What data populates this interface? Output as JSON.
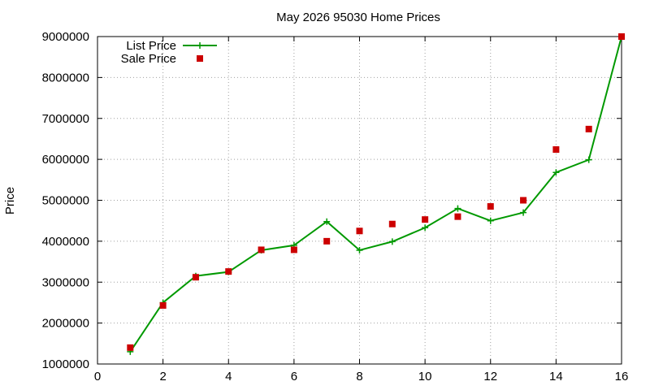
{
  "chart_data": {
    "type": "line",
    "title": "May 2026 95030 Home Prices",
    "xlabel": "",
    "ylabel": "Price",
    "xlim": [
      0,
      16
    ],
    "ylim": [
      1000000,
      9000000
    ],
    "x_ticks": [
      0,
      2,
      4,
      6,
      8,
      10,
      12,
      14,
      16
    ],
    "x_tick_labels": [
      "0",
      "2",
      "4",
      "6",
      "8",
      "10",
      "12",
      "14",
      "16"
    ],
    "y_ticks": [
      1000000,
      2000000,
      3000000,
      4000000,
      5000000,
      6000000,
      7000000,
      8000000,
      9000000
    ],
    "y_tick_labels": [
      "1000000",
      "2000000",
      "3000000",
      "4000000",
      "5000000",
      "6000000",
      "7000000",
      "8000000",
      "9000000"
    ],
    "grid": true,
    "legend_position": "top-left",
    "series": [
      {
        "name": "List Price",
        "style": "line+plus",
        "color": "#009900",
        "x": [
          1,
          2,
          3,
          4,
          5,
          6,
          7,
          8,
          9,
          10,
          11,
          12,
          13,
          14,
          15,
          16
        ],
        "values": [
          1300000,
          2500000,
          3150000,
          3250000,
          3780000,
          3900000,
          4480000,
          3780000,
          3990000,
          4330000,
          4800000,
          4500000,
          4700000,
          5680000,
          5990000,
          9000000
        ]
      },
      {
        "name": "Sale Price",
        "style": "square",
        "color": "#cc0000",
        "x": [
          1,
          2,
          3,
          4,
          5,
          6,
          7,
          8,
          9,
          10,
          11,
          12,
          13,
          14,
          15,
          16
        ],
        "values": [
          1400000,
          2430000,
          3120000,
          3260000,
          3790000,
          3790000,
          4000000,
          4250000,
          4420000,
          4530000,
          4600000,
          4850000,
          5000000,
          6240000,
          6740000,
          9000000
        ]
      }
    ]
  }
}
